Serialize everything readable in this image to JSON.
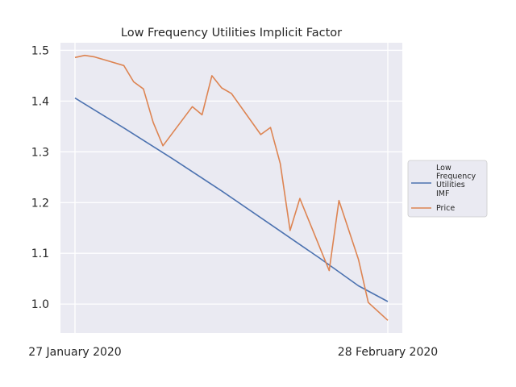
{
  "chart_data": {
    "type": "line",
    "title": "Low Frequency Utilities Implicit Factor",
    "xlabel": "",
    "ylabel": "",
    "x_tick_labels": [
      "27 January 2020",
      "28 February 2020"
    ],
    "x_range": [
      "2020-01-27",
      "2020-02-28"
    ],
    "ylim": [
      0.943,
      1.515
    ],
    "y_ticks": [
      1.0,
      1.1,
      1.2,
      1.3,
      1.4,
      1.5
    ],
    "y_tick_labels": [
      "1.0",
      "1.1",
      "1.2",
      "1.3",
      "1.4",
      "1.5"
    ],
    "grid": true,
    "legend_position": "right",
    "series": [
      {
        "name": "Low Frequency Utilities IMF",
        "legend_lines": [
          "Low",
          "Frequency",
          "Utilities",
          "IMF"
        ],
        "color": "#4c72b0",
        "points": [
          [
            "2020-01-27",
            1.406
          ],
          [
            "2020-02-01",
            1.347
          ],
          [
            "2020-02-06",
            1.286
          ],
          [
            "2020-02-11",
            1.223
          ],
          [
            "2020-02-16",
            1.157
          ],
          [
            "2020-02-21",
            1.091
          ],
          [
            "2020-02-25",
            1.036
          ],
          [
            "2020-02-28",
            1.005
          ]
        ]
      },
      {
        "name": "Price",
        "legend_lines": [
          "Price"
        ],
        "color": "#dd8452",
        "points": [
          [
            "2020-01-27",
            1.486
          ],
          [
            "2020-01-28",
            1.49
          ],
          [
            "2020-01-29",
            1.487
          ],
          [
            "2020-02-01",
            1.47
          ],
          [
            "2020-02-02",
            1.438
          ],
          [
            "2020-02-03",
            1.424
          ],
          [
            "2020-02-04",
            1.358
          ],
          [
            "2020-02-05",
            1.312
          ],
          [
            "2020-02-08",
            1.389
          ],
          [
            "2020-02-09",
            1.373
          ],
          [
            "2020-02-10",
            1.45
          ],
          [
            "2020-02-11",
            1.426
          ],
          [
            "2020-02-12",
            1.415
          ],
          [
            "2020-02-15",
            1.334
          ],
          [
            "2020-02-16",
            1.348
          ],
          [
            "2020-02-17",
            1.277
          ],
          [
            "2020-02-18",
            1.145
          ],
          [
            "2020-02-19",
            1.208
          ],
          [
            "2020-02-22",
            1.066
          ],
          [
            "2020-02-23",
            1.204
          ],
          [
            "2020-02-25",
            1.088
          ],
          [
            "2020-02-26",
            1.003
          ],
          [
            "2020-02-28",
            0.968
          ]
        ]
      }
    ]
  }
}
